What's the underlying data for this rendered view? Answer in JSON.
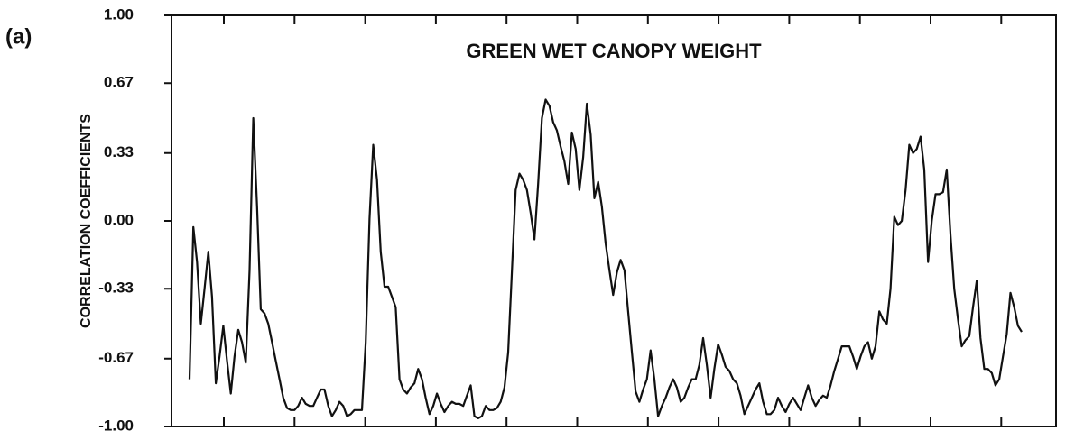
{
  "chart_data": {
    "type": "line",
    "panel_label": "(a)",
    "title": "GREEN WET CANOPY WEIGHT",
    "y_label": "CORRELATION COEFFICIENTS",
    "ylim": [
      -1,
      1
    ],
    "yticks": [
      {
        "value": 1,
        "label": "1.00"
      },
      0.67,
      0.33,
      {
        "value": 0,
        "label": "0.00"
      },
      -0.33,
      -0.67,
      {
        "value": -1,
        "label": "-1.00"
      }
    ],
    "color": "#111111",
    "values": [
      -0.77,
      -0.03,
      -0.2,
      -0.5,
      -0.33,
      -0.15,
      -0.37,
      -0.79,
      -0.66,
      -0.51,
      -0.68,
      -0.84,
      -0.66,
      -0.53,
      -0.59,
      -0.69,
      -0.24,
      0.5,
      0.07,
      -0.43,
      -0.45,
      -0.5,
      -0.59,
      -0.68,
      -0.77,
      -0.86,
      -0.91,
      -0.92,
      -0.92,
      -0.9,
      -0.86,
      -0.89,
      -0.9,
      -0.9,
      -0.86,
      -0.82,
      -0.82,
      -0.9,
      -0.95,
      -0.92,
      -0.88,
      -0.9,
      -0.95,
      -0.94,
      -0.92,
      -0.92,
      -0.92,
      -0.59,
      0.01,
      0.37,
      0.2,
      -0.15,
      -0.32,
      -0.32,
      -0.37,
      -0.42,
      -0.77,
      -0.82,
      -0.84,
      -0.81,
      -0.79,
      -0.72,
      -0.77,
      -0.86,
      -0.94,
      -0.9,
      -0.84,
      -0.89,
      -0.93,
      -0.9,
      -0.88,
      -0.89,
      -0.89,
      -0.9,
      -0.85,
      -0.8,
      -0.95,
      -0.96,
      -0.95,
      -0.9,
      -0.92,
      -0.92,
      -0.91,
      -0.88,
      -0.81,
      -0.64,
      -0.24,
      0.15,
      0.23,
      0.2,
      0.15,
      0.04,
      -0.09,
      0.18,
      0.5,
      0.59,
      0.56,
      0.48,
      0.44,
      0.36,
      0.29,
      0.18,
      0.43,
      0.35,
      0.15,
      0.31,
      0.57,
      0.42,
      0.11,
      0.19,
      0.07,
      -0.11,
      -0.24,
      -0.36,
      -0.25,
      -0.19,
      -0.24,
      -0.44,
      -0.64,
      -0.83,
      -0.88,
      -0.82,
      -0.77,
      -0.63,
      -0.77,
      -0.95,
      -0.9,
      -0.86,
      -0.81,
      -0.77,
      -0.81,
      -0.88,
      -0.86,
      -0.81,
      -0.77,
      -0.77,
      -0.7,
      -0.57,
      -0.7,
      -0.86,
      -0.72,
      -0.6,
      -0.65,
      -0.71,
      -0.73,
      -0.77,
      -0.79,
      -0.85,
      -0.94,
      -0.9,
      -0.86,
      -0.82,
      -0.79,
      -0.88,
      -0.94,
      -0.94,
      -0.92,
      -0.86,
      -0.9,
      -0.93,
      -0.89,
      -0.86,
      -0.89,
      -0.92,
      -0.86,
      -0.8,
      -0.86,
      -0.9,
      -0.87,
      -0.85,
      -0.86,
      -0.8,
      -0.73,
      -0.67,
      -0.61,
      -0.61,
      -0.61,
      -0.66,
      -0.72,
      -0.66,
      -0.61,
      -0.59,
      -0.67,
      -0.61,
      -0.44,
      -0.48,
      -0.5,
      -0.33,
      0.02,
      -0.02,
      0,
      0.15,
      0.37,
      0.33,
      0.35,
      0.41,
      0.25,
      -0.2,
      0,
      0.13,
      0.13,
      0.14,
      0.25,
      -0.07,
      -0.33,
      -0.48,
      -0.61,
      -0.58,
      -0.56,
      -0.42,
      -0.29,
      -0.57,
      -0.72,
      -0.72,
      -0.74,
      -0.8,
      -0.77,
      -0.66,
      -0.55,
      -0.35,
      -0.42,
      -0.51,
      -0.54
    ]
  }
}
